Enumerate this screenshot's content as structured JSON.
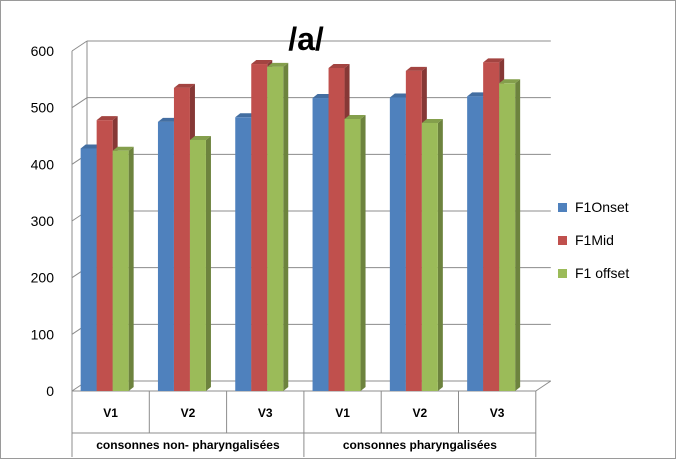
{
  "chart_data": {
    "type": "bar",
    "title": "/a/",
    "categories": [
      "V1",
      "V2",
      "V3",
      "V1",
      "V2",
      "V3"
    ],
    "groups": [
      {
        "label": "consonnes non- pharyngalisées",
        "span": [
          0,
          2
        ]
      },
      {
        "label": "consonnes pharyngalisées",
        "span": [
          3,
          5
        ]
      }
    ],
    "series": [
      {
        "name": "F1Onset",
        "color": "#4F81BD",
        "values": [
          428,
          475,
          483,
          517,
          518,
          520
        ]
      },
      {
        "name": "F1Mid",
        "color": "#C0504D",
        "values": [
          478,
          535,
          577,
          570,
          565,
          580
        ]
      },
      {
        "name": "F1 offset",
        "color": "#9BBB59",
        "values": [
          424,
          443,
          572,
          480,
          473,
          543
        ]
      }
    ],
    "y_ticks": [
      "0",
      "100",
      "200",
      "300",
      "400",
      "500",
      "600"
    ],
    "ylim": [
      0,
      600
    ],
    "grid": true,
    "legend_position": "right"
  }
}
